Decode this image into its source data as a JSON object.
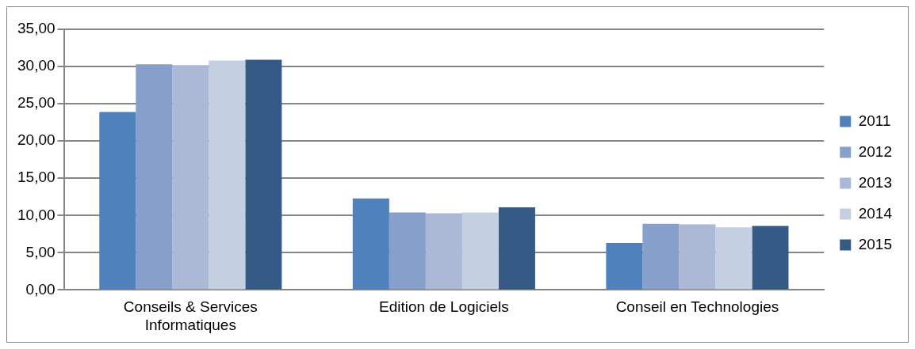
{
  "chart_data": {
    "type": "bar",
    "categories": [
      "Conseils & Services Informatiques",
      "Edition de Logiciels",
      "Conseil en Technologies"
    ],
    "series": [
      {
        "name": "2011",
        "color": "#4f81bd",
        "values": [
          23.9,
          12.3,
          6.3
        ]
      },
      {
        "name": "2012",
        "color": "#86a0cb",
        "values": [
          30.3,
          10.4,
          8.9
        ]
      },
      {
        "name": "2013",
        "color": "#abb9d7",
        "values": [
          30.2,
          10.3,
          8.8
        ]
      },
      {
        "name": "2014",
        "color": "#c5cfe2",
        "values": [
          30.8,
          10.4,
          8.4
        ]
      },
      {
        "name": "2015",
        "color": "#355a86",
        "values": [
          30.9,
          11.1,
          8.6
        ]
      }
    ],
    "ylim": [
      0,
      35
    ],
    "yticks": [
      {
        "value": 0,
        "label": "0,00"
      },
      {
        "value": 5,
        "label": "5,00"
      },
      {
        "value": 10,
        "label": "10,00"
      },
      {
        "value": 15,
        "label": "15,00"
      },
      {
        "value": 20,
        "label": "20,00"
      },
      {
        "value": 25,
        "label": "25,00"
      },
      {
        "value": 30,
        "label": "30,00"
      },
      {
        "value": 35,
        "label": "35,00"
      }
    ],
    "grid": "y",
    "legend": "right"
  }
}
